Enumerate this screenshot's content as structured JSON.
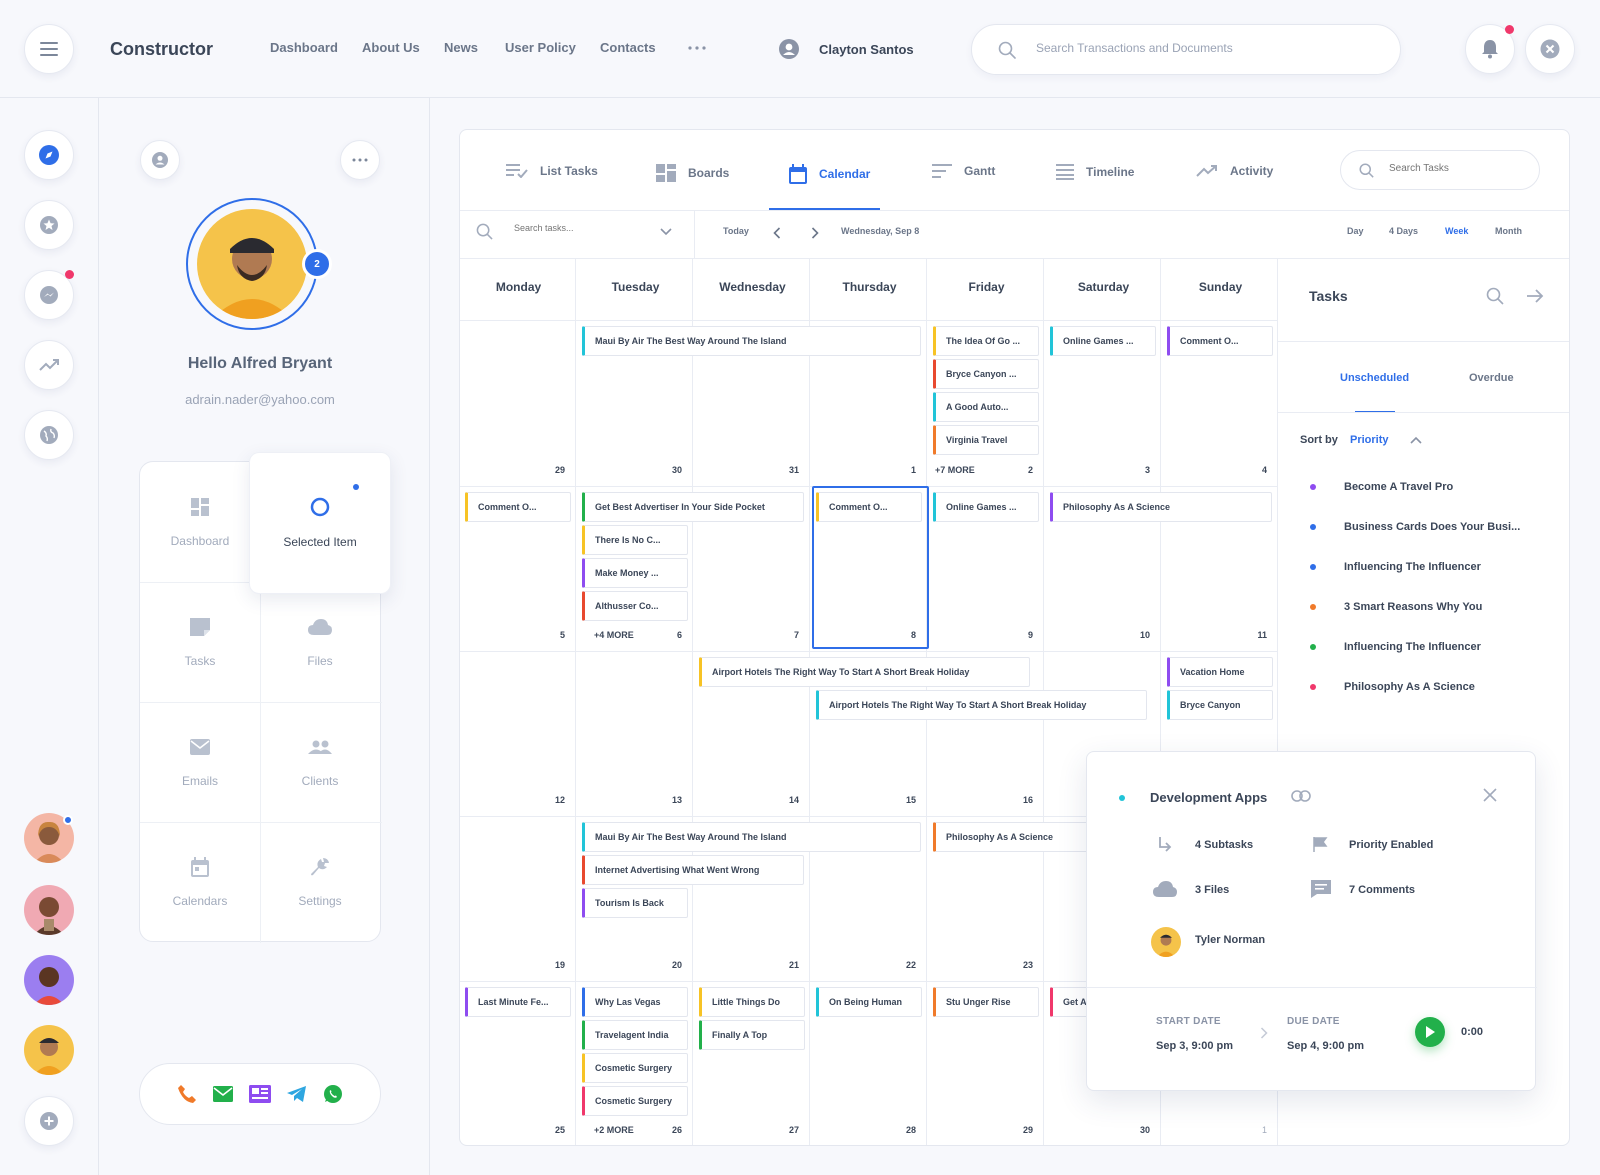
{
  "app": {
    "title": "Constructor"
  },
  "nav": {
    "links": [
      "Dashboard",
      "About Us",
      "News",
      "User Policy",
      "Contacts"
    ]
  },
  "user": {
    "name": "Clayton Santos"
  },
  "search": {
    "placeholder": "Search Transactions and Documents"
  },
  "profile": {
    "greeting": "Hello Alfred Bryant",
    "email": "adrain.nader@yahoo.com",
    "badge": "2"
  },
  "menu": {
    "items": [
      "Dashboard",
      "Selected Item",
      "Tasks",
      "Files",
      "Emails",
      "Clients",
      "Calendars",
      "Settings"
    ]
  },
  "views": {
    "tabs": [
      "List Tasks",
      "Boards",
      "Calendar",
      "Gantt",
      "Timeline",
      "Activity"
    ],
    "search_placeholder": "Search Tasks"
  },
  "toolbar": {
    "search_placeholder": "Search tasks...",
    "today": "Today",
    "current_date": "Wednesday, Sep 8",
    "ranges": [
      "Day",
      "4 Days",
      "Week",
      "Month"
    ]
  },
  "calendar": {
    "days": [
      "Monday",
      "Tuesday",
      "Wednesday",
      "Thursday",
      "Friday",
      "Saturday",
      "Sunday"
    ],
    "weeks": [
      [
        "29",
        "30",
        "31",
        "1",
        "2",
        "3",
        "4"
      ],
      [
        "5",
        "6",
        "7",
        "8",
        "9",
        "10",
        "11"
      ],
      [
        "12",
        "13",
        "14",
        "15",
        "16",
        "",
        ""
      ],
      [
        "19",
        "20",
        "21",
        "22",
        "23",
        "",
        ""
      ],
      [
        "25",
        "26",
        "27",
        "28",
        "29",
        "30",
        "1"
      ]
    ],
    "more": [
      "+7 MORE",
      "+4 MORE",
      "+2 MORE"
    ],
    "events": [
      "Maui By Air The Best Way Around The Island",
      "The Idea Of Go ...",
      "Bryce Canyon ...",
      "A Good Auto...",
      "Virginia Travel",
      "Online Games ...",
      "Comment O...",
      "Comment O...",
      "Get Best Advertiser In Your Side Pocket",
      "There Is No C...",
      "Make Money ...",
      "Althusser Co...",
      "Comment O...",
      "Online Games ...",
      "Philosophy As A Science",
      "Airport Hotels The Right Way To Start A Short Break Holiday",
      "Airport Hotels The Right Way To Start A Short Break Holiday",
      "Vacation Home",
      "Bryce Canyon",
      "Maui By Air The Best Way Around The Island",
      "Internet Advertising What Went Wrong",
      "Tourism Is Back",
      "Philosophy As A Science",
      "Last Minute Fe...",
      "Why Las Vegas",
      "Travelagent India",
      "Cosmetic Surgery",
      "Cosmetic Surgery",
      "Little Things Do",
      "Finally A Top",
      "On Being Human",
      "Stu Unger Rise",
      "Get A"
    ]
  },
  "tasks_panel": {
    "title": "Tasks",
    "tabs": [
      "Unscheduled",
      "Overdue"
    ],
    "sort_label": "Sort by",
    "sort_value": "Priority",
    "items": [
      "Become A Travel Pro",
      "Business Cards Does Your Busi...",
      "Influencing The Influencer",
      "3 Smart Reasons Why You",
      "Influencing The Influencer",
      "Philosophy As A Science"
    ]
  },
  "popup": {
    "title": "Development Apps",
    "subtasks": "4 Subtasks",
    "priority": "Priority Enabled",
    "files": "3 Files",
    "comments": "7 Comments",
    "assignee": "Tyler Norman",
    "start_label": "START DATE",
    "start_value": "Sep 3, 9:00 pm",
    "due_label": "DUE DATE",
    "due_value": "Sep 4, 9:00 pm",
    "timer": "0:00"
  },
  "colors": {
    "accent": "#2f6ee8",
    "yellow": "#f7c325",
    "red": "#e8492f",
    "teal": "#21c4d8",
    "purple": "#8e4cf0",
    "green": "#22b04b",
    "orange": "#f07a2a",
    "pink": "#f0386b",
    "blue": "#2f6ee8"
  }
}
